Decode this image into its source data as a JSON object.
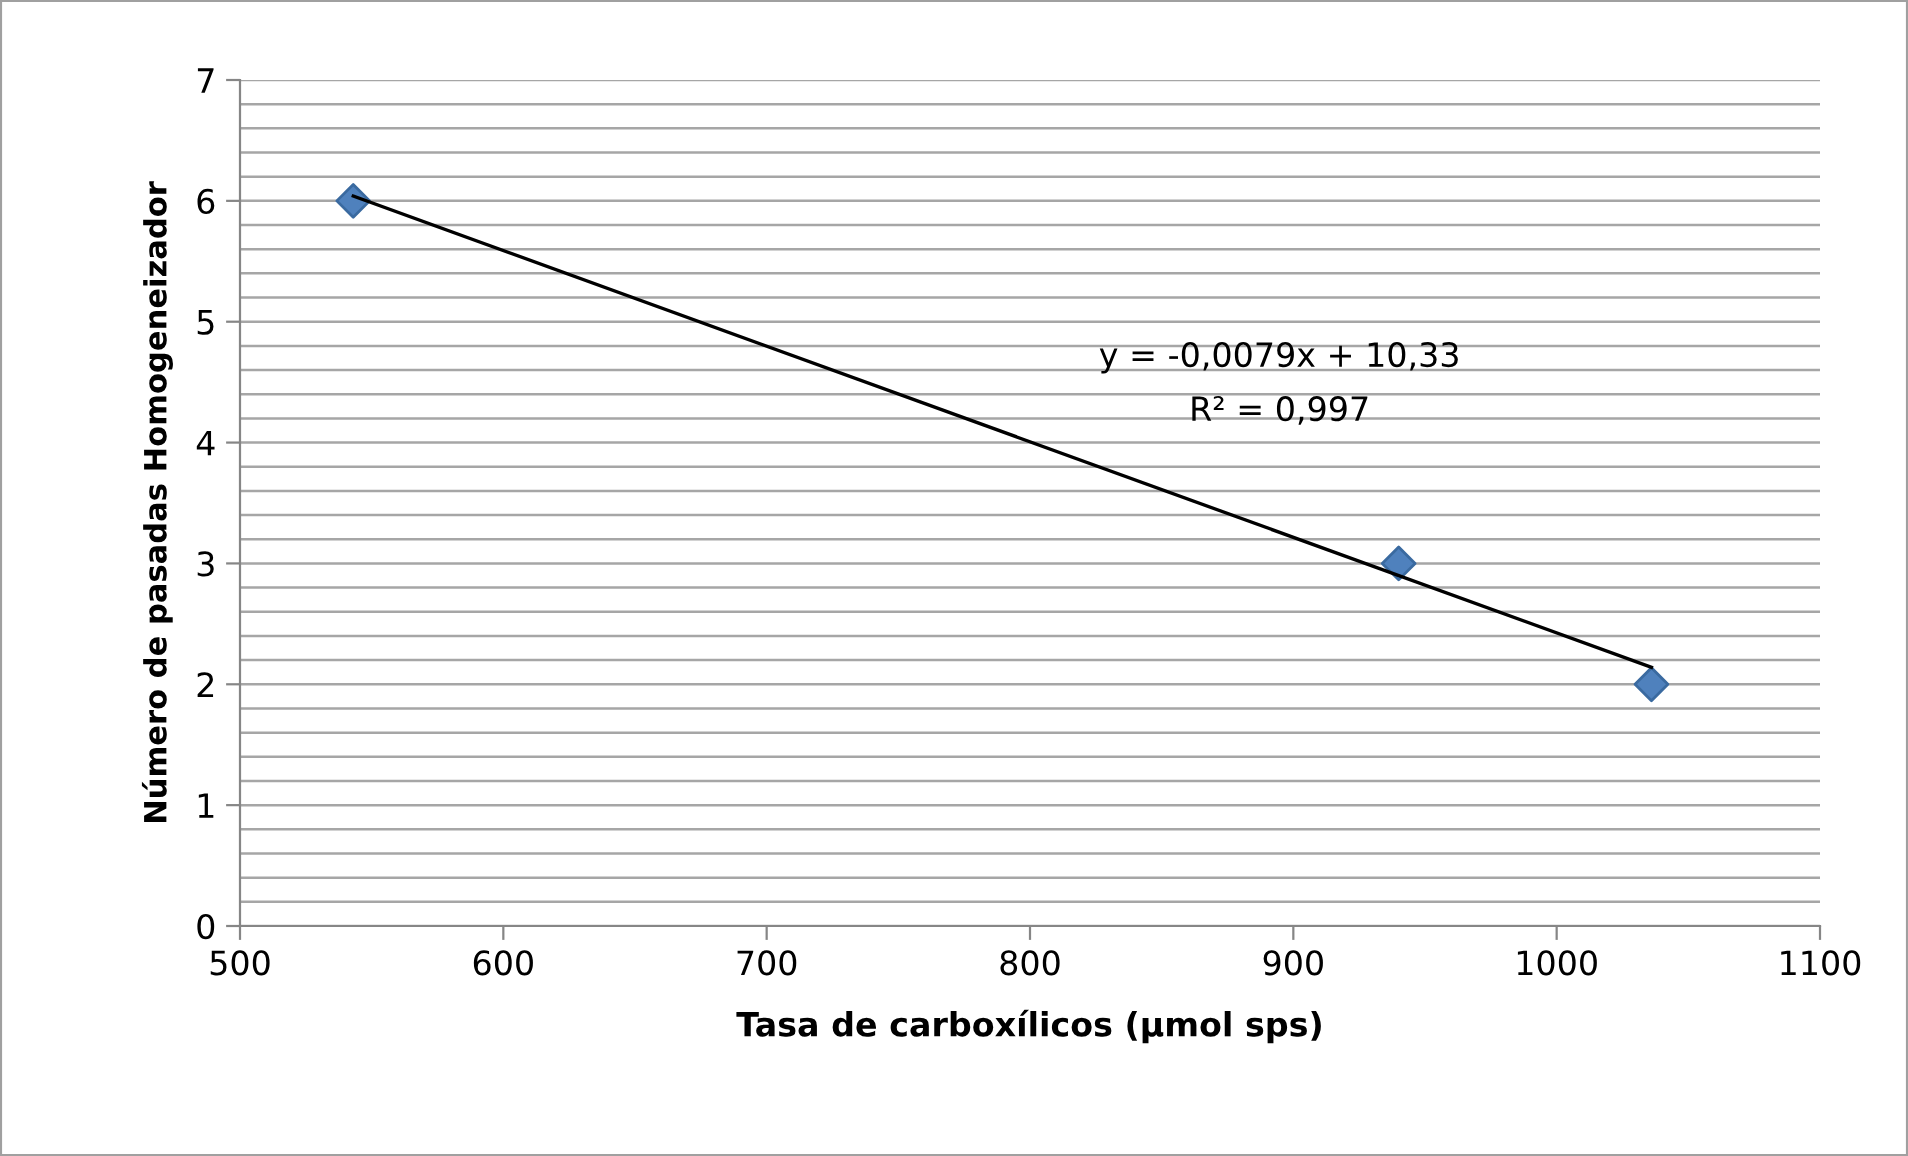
{
  "chart_data": {
    "type": "scatter",
    "xlabel": "Tasa de carboxílicos (µmol sps)",
    "ylabel": "Número de pasadas Homogeneizador",
    "series": [
      {
        "color": "#4f81bd",
        "marker": "diamond",
        "x": [
          543,
          940,
          1036
        ],
        "values": [
          6,
          3,
          2
        ]
      },
      {
        "type": "line",
        "color": "#000000",
        "marker": "none",
        "line_style": "solid",
        "x": [
          543,
          1036
        ],
        "values": [
          6.04,
          2.14
        ]
      }
    ],
    "annotations": [
      "y = -0,0079x + 10,33",
      "R² = 0,997"
    ],
    "xlim": [
      500,
      1100
    ],
    "xticks": [
      500,
      600,
      700,
      800,
      900,
      1000,
      1100
    ],
    "ylim": [
      0,
      7
    ],
    "yticks": [
      0,
      1,
      2,
      3,
      4,
      5,
      6,
      7
    ],
    "grid": "y",
    "legend": false
  }
}
